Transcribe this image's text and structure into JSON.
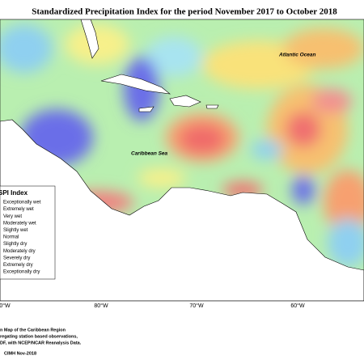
{
  "title": "Standardized Precipitation Index for the period November 2017 to October 2018",
  "labels": {
    "atlantic": "Atlantic Ocean",
    "caribbean": "Caribbean Sea"
  },
  "legend": {
    "title": "SPI Index",
    "items": [
      "Exceptionally wet",
      "Extremely wet",
      "Very wet",
      "Moderately wet",
      "Slightly wet",
      "Normal",
      "Slightly dry",
      "Moderately dry",
      "Severely dry",
      "Extremely dry",
      "Exceptionally dry"
    ]
  },
  "longitudes": [
    "0°W",
    "80°W",
    "70°W",
    "60°W"
  ],
  "credits": [
    "n Map of the Caribbean Region",
    "regating station based observations,",
    "DF, with NCEP/NCAR Reanalysis Data.",
    "CIMH Nov-2018"
  ]
}
